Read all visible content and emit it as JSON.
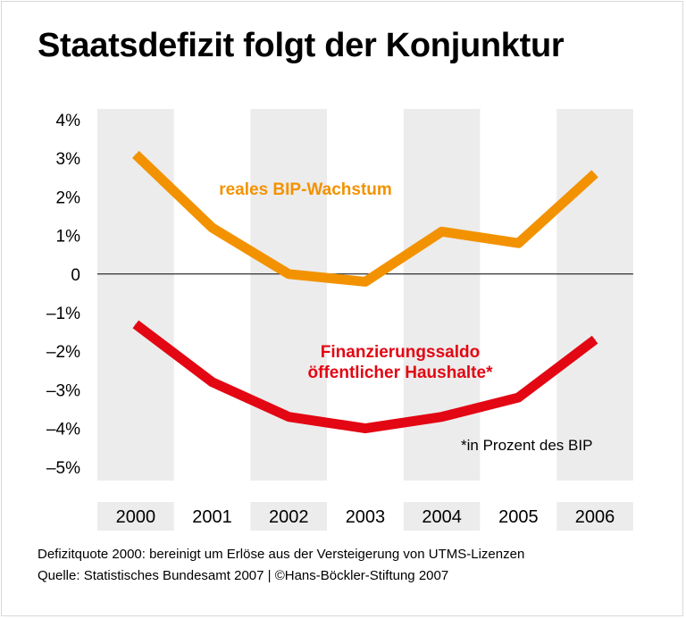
{
  "title": "Staatsdefizit folgt der Konjunktur",
  "footer": {
    "line1": "Defizitquote 2000: bereinigt um Erlöse aus der Versteigerung von UTMS-Lizenzen",
    "line2": "Quelle: Statistisches Bundesamt 2007 | ©Hans-Böckler-Stiftung 2007"
  },
  "chart_data": {
    "type": "line",
    "title": "Staatsdefizit folgt der Konjunktur",
    "x": [
      "2000",
      "2001",
      "2002",
      "2003",
      "2004",
      "2005",
      "2006"
    ],
    "ylim": [
      -5,
      4
    ],
    "y_ticks": [
      "4%",
      "3%",
      "2%",
      "1%",
      "0",
      "–1%",
      "–2%",
      "–3%",
      "–4%",
      "–5%"
    ],
    "y_tick_values": [
      4,
      3,
      2,
      1,
      0,
      -1,
      -2,
      -3,
      -4,
      -5
    ],
    "series": [
      {
        "name": "reales BIP-Wachstum",
        "color": "#f39200",
        "values": [
          3.1,
          1.2,
          0.0,
          -0.2,
          1.1,
          0.8,
          2.6
        ]
      },
      {
        "name": "Finanzierungssaldo öffentlicher Haushalte*",
        "name_lines": [
          "Finanzierungssaldo",
          "öffentlicher Haushalte*"
        ],
        "color": "#e30613",
        "values": [
          -1.3,
          -2.8,
          -3.7,
          -4.0,
          -3.7,
          -3.2,
          -1.7
        ]
      }
    ],
    "annotation": "*in Prozent des BIP",
    "grid": false,
    "alternating_column_shading": true,
    "legend": "inline labels next to lines"
  }
}
